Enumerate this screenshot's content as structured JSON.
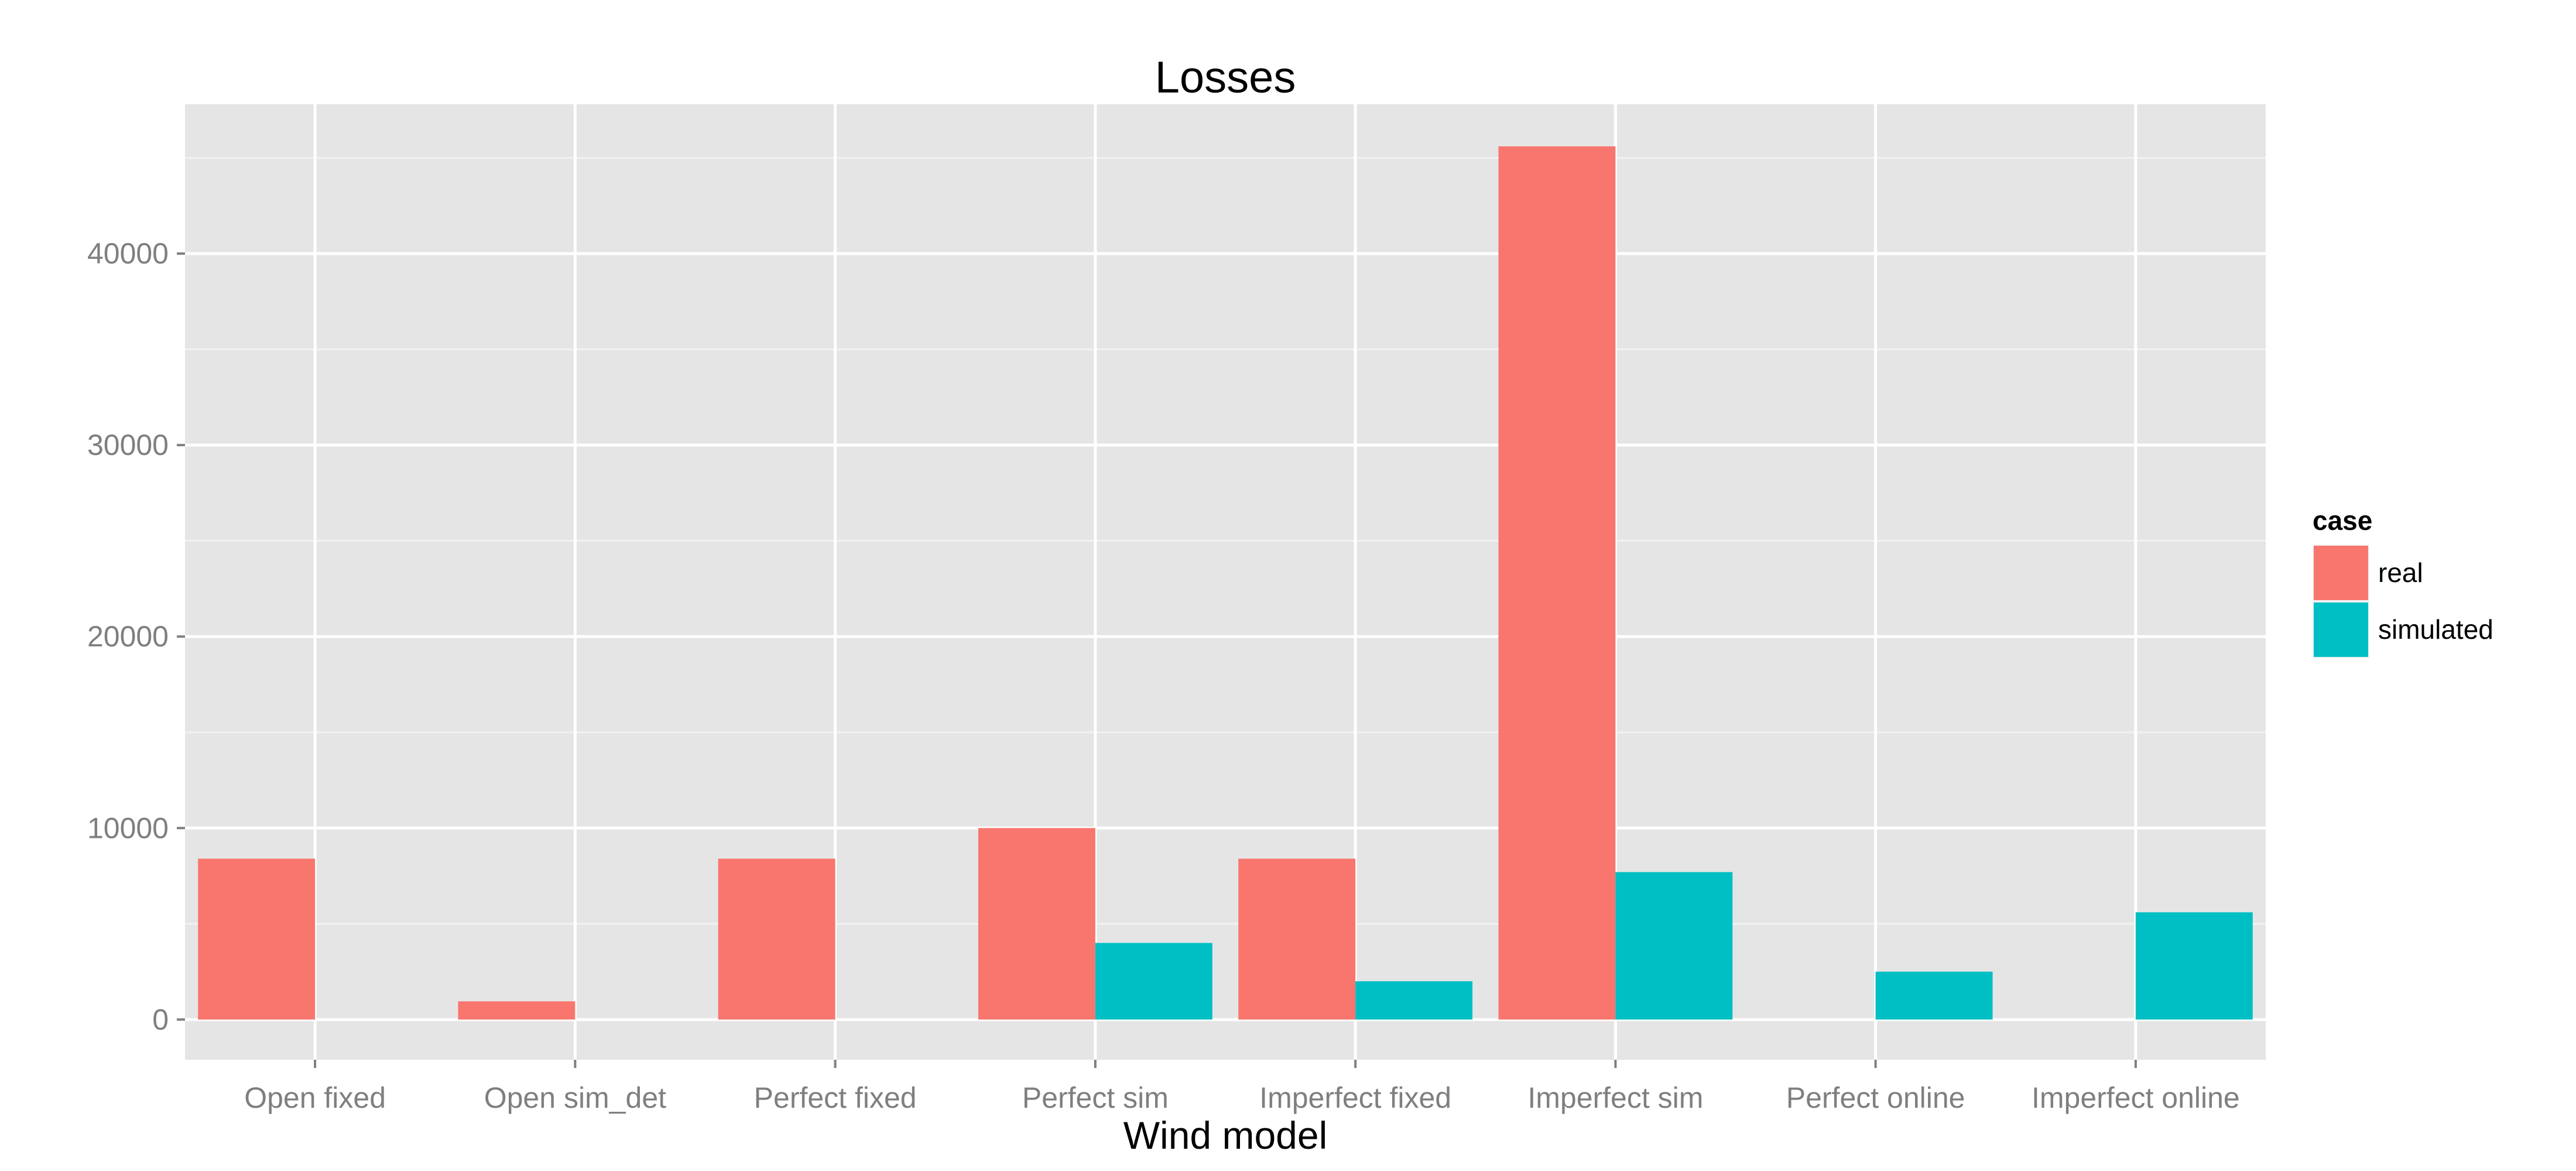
{
  "chart_data": {
    "type": "bar",
    "title": "Losses",
    "xlabel": "Wind model",
    "ylabel": "",
    "categories": [
      "Open fixed",
      "Open sim_det",
      "Perfect fixed",
      "Perfect sim",
      "Imperfect fixed",
      "Imperfect sim",
      "Perfect online",
      "Imperfect online"
    ],
    "series": [
      {
        "name": "real",
        "color": "#F8766D",
        "values": [
          8400,
          950,
          8400,
          10000,
          8400,
          45600,
          null,
          null
        ]
      },
      {
        "name": "simulated",
        "color": "#00BFC4",
        "values": [
          null,
          null,
          null,
          4000,
          2000,
          7700,
          2500,
          5600
        ]
      }
    ],
    "ylim": [
      -2100,
      47800
    ],
    "yticks": [
      0,
      10000,
      20000,
      30000,
      40000
    ],
    "ytick_labels": [
      "0",
      "10000",
      "20000",
      "30000",
      "40000"
    ],
    "grid": true,
    "legend": {
      "title": "case",
      "position": "right"
    },
    "panel_background": "#E5E5E5"
  }
}
